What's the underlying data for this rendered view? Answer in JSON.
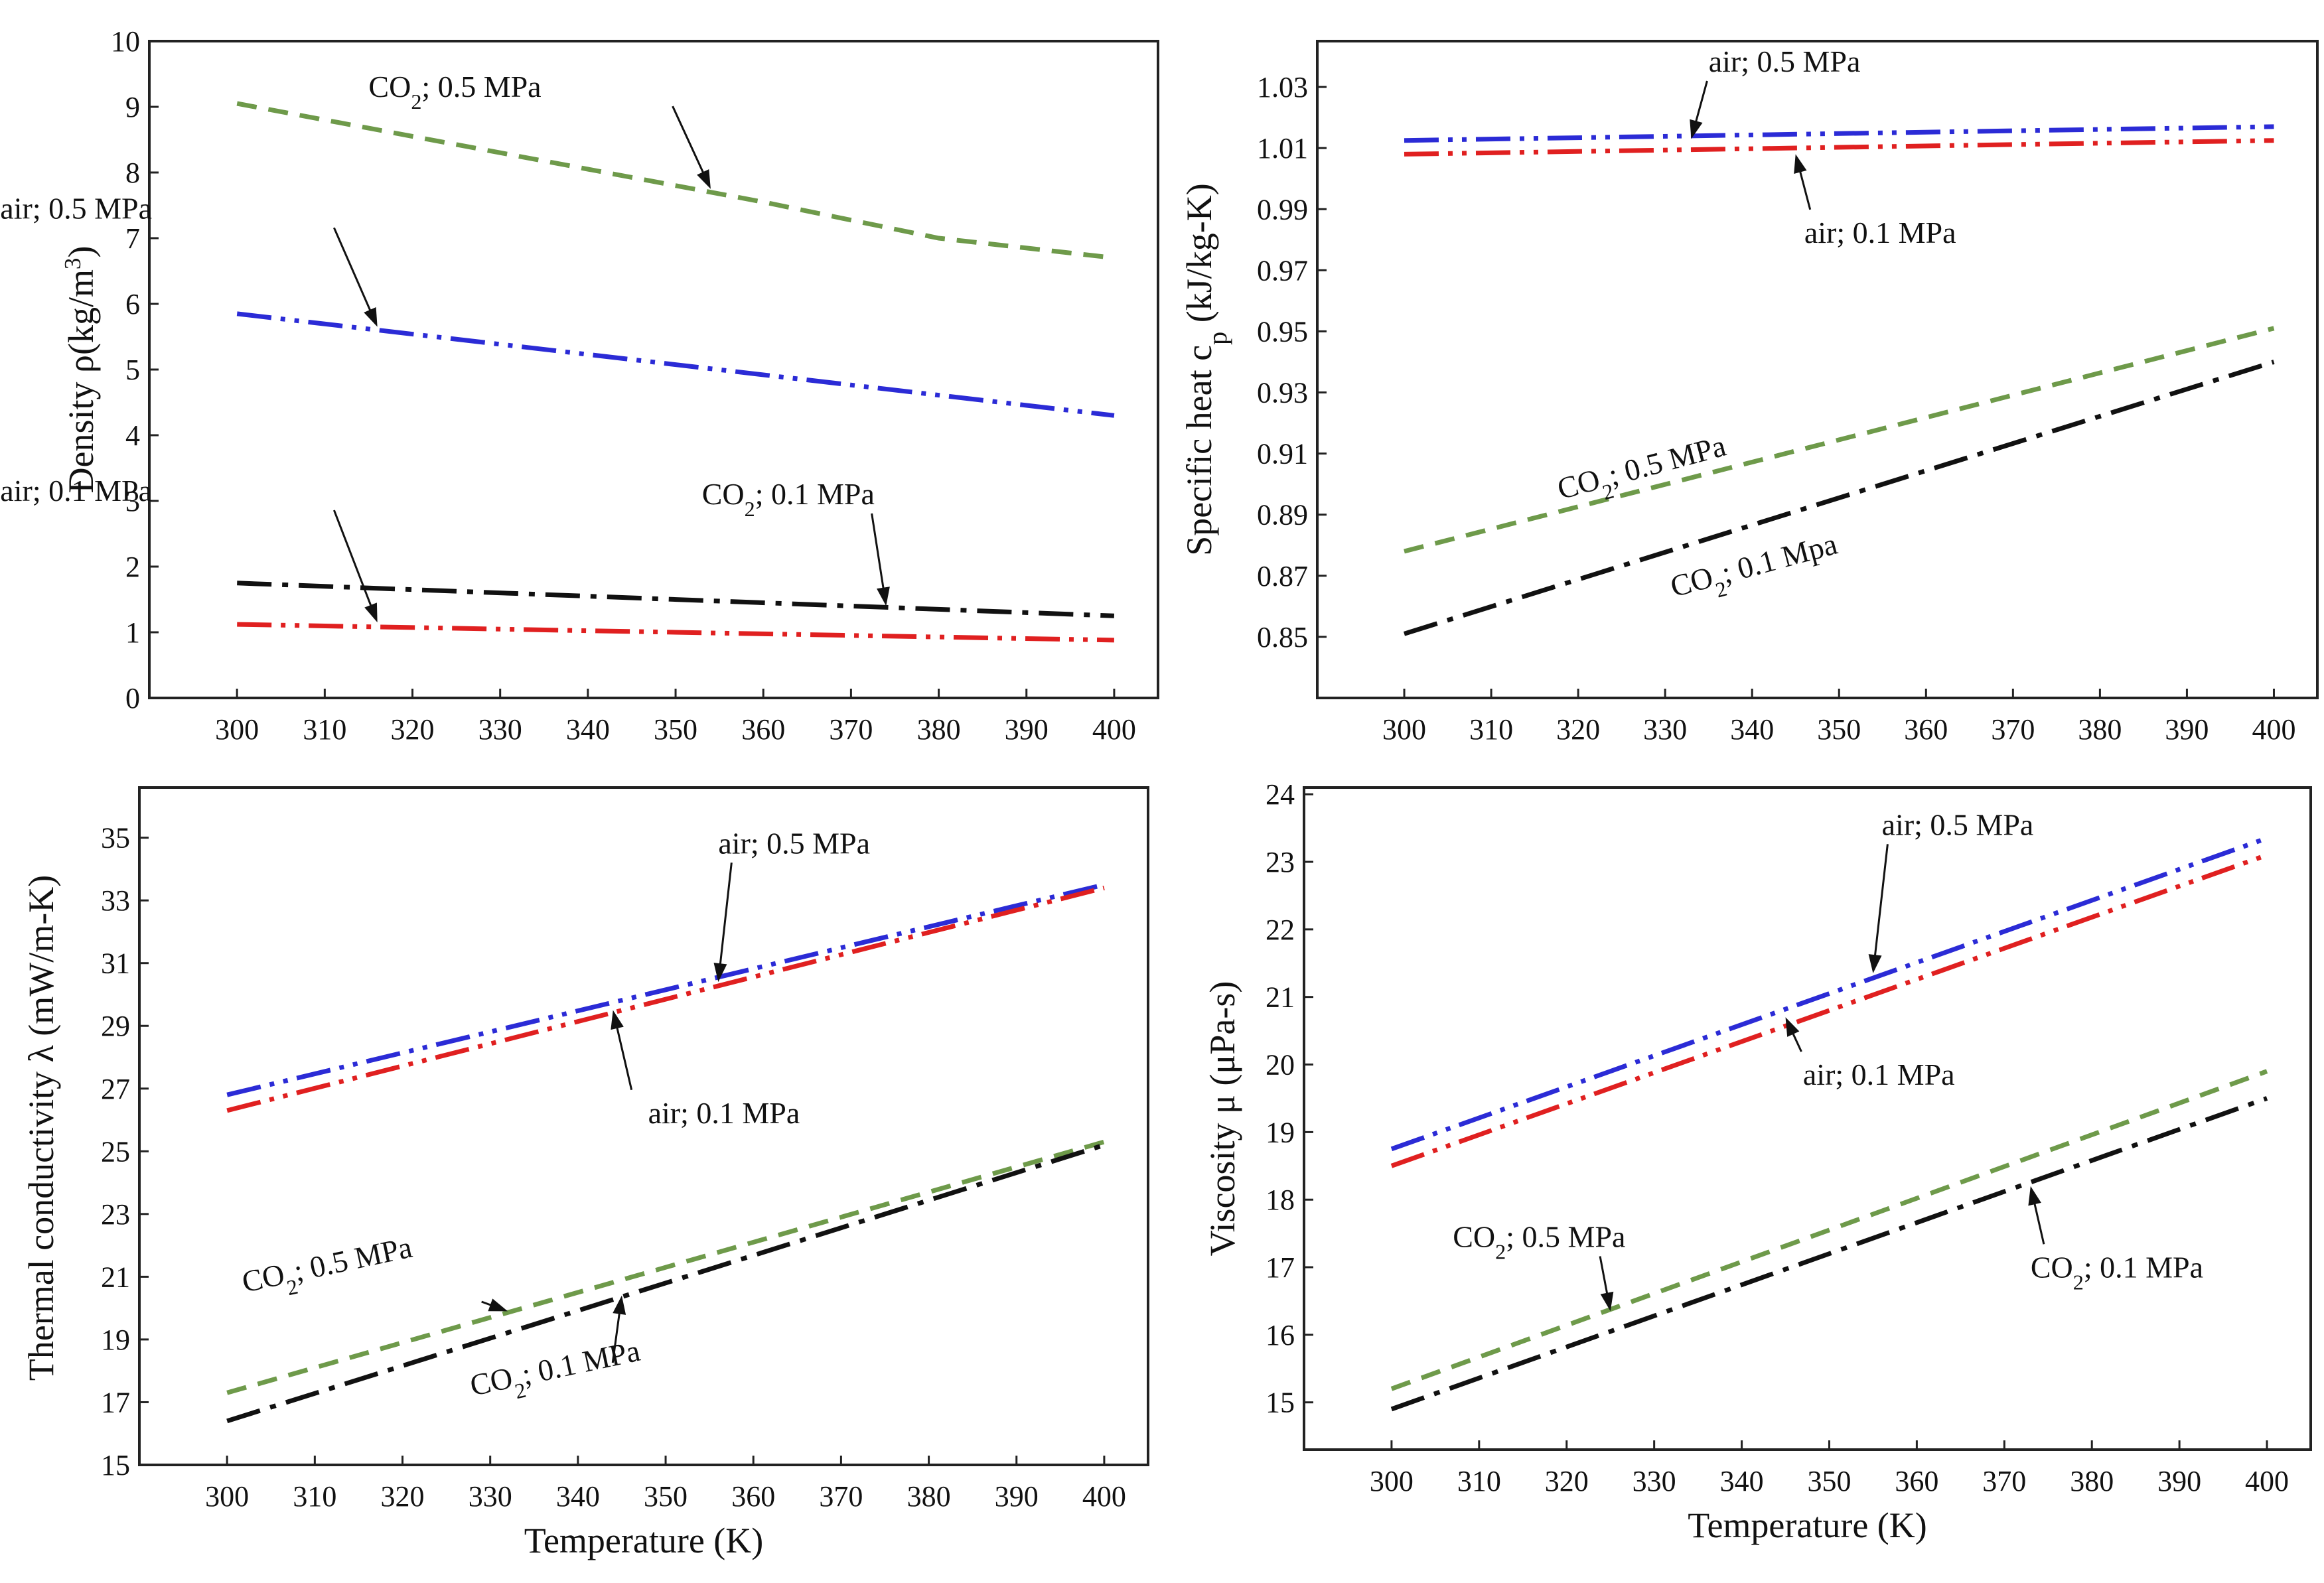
{
  "figure": {
    "panels_count": 4
  },
  "styles": {
    "air_0_5_MPa": {
      "color": "#2b2bd6",
      "dash": "dashdotdot"
    },
    "air_0_1_MPa": {
      "color": "#e02020",
      "dash": "dashdotdot"
    },
    "CO2_0_5_MPa": {
      "color": "#6e9a4a",
      "dash": "dashed"
    },
    "CO2_0_1_MPa": {
      "color": "#111111",
      "dash": "dashdot"
    }
  },
  "chart_data": [
    {
      "type": "line",
      "title": "",
      "xlabel": "",
      "ylabel": "Density ρ(kg/m³)",
      "xlim": [
        290,
        405
      ],
      "ylim": [
        0,
        10
      ],
      "xticks": [
        "300",
        "310",
        "320",
        "330",
        "340",
        "350",
        "360",
        "370",
        "380",
        "390",
        "400"
      ],
      "yticks": [
        "0",
        "1",
        "2",
        "3",
        "4",
        "5",
        "6",
        "7",
        "8",
        "9",
        "10"
      ],
      "x": [
        300,
        400
      ],
      "series": [
        {
          "name": "CO₂; 0.5 MPa",
          "style": "CO2_0_5_MPa",
          "x": [
            300,
            320,
            340,
            360,
            380,
            400
          ],
          "values": [
            9.05,
            8.55,
            8.05,
            7.55,
            7.0,
            6.7
          ]
        },
        {
          "name": "air; 0.5 MPa",
          "style": "air_0_5_MPa",
          "x": [
            300,
            400
          ],
          "values": [
            5.85,
            4.3
          ]
        },
        {
          "name": "CO₂; 0.1 MPa",
          "style": "CO2_0_1_MPa",
          "x": [
            300,
            400
          ],
          "values": [
            1.75,
            1.25
          ]
        },
        {
          "name": "air; 0.1 MPa",
          "style": "air_0_1_MPa",
          "x": [
            300,
            400
          ],
          "values": [
            1.12,
            0.88
          ]
        }
      ],
      "annotations": [
        {
          "label": "CO₂; 0.5 MPa",
          "text_at": [
            315,
            9.15
          ],
          "point_to": [
            354,
            7.75
          ]
        },
        {
          "label": "air; 0.5 MPa",
          "text_at": [
            273,
            7.3
          ],
          "point_to": [
            316,
            5.65
          ]
        },
        {
          "label": "air;  0.1 MPa",
          "text_at": [
            273,
            3.0
          ],
          "point_to": [
            316,
            1.15
          ]
        },
        {
          "label": "CO₂; 0.1 MPa",
          "text_at": [
            353,
            2.95
          ],
          "point_to": [
            374,
            1.4
          ]
        }
      ]
    },
    {
      "type": "line",
      "title": "",
      "xlabel": "",
      "ylabel": "Specific heat cₚ (kJ/kg-K)",
      "xlim": [
        290,
        405
      ],
      "ylim": [
        0.83,
        1.045
      ],
      "xticks": [
        "300",
        "310",
        "320",
        "330",
        "340",
        "350",
        "360",
        "370",
        "380",
        "390",
        "400"
      ],
      "yticks": [
        "0.85",
        "0.87",
        "0.89",
        "0.91",
        "0.93",
        "0.95",
        "0.97",
        "0.99",
        "1.01",
        "1.03"
      ],
      "series": [
        {
          "name": "air; 0.5 MPa",
          "style": "air_0_5_MPa",
          "x": [
            300,
            400
          ],
          "values": [
            1.0125,
            1.017
          ]
        },
        {
          "name": "air; 0.1 MPa",
          "style": "air_0_1_MPa",
          "x": [
            300,
            400
          ],
          "values": [
            1.008,
            1.0125
          ]
        },
        {
          "name": "CO₂; 0.5 MPa",
          "style": "CO2_0_5_MPa",
          "x": [
            300,
            400
          ],
          "values": [
            0.878,
            0.951
          ]
        },
        {
          "name": "CO₂; 0.1 MPa",
          "style": "CO2_0_1_MPa",
          "x": [
            300,
            400
          ],
          "values": [
            0.851,
            0.94
          ]
        }
      ],
      "annotations": [
        {
          "label": "air; 0.5 MPa",
          "text_at": [
            335,
            1.035
          ],
          "point_to": [
            333,
            1.013
          ]
        },
        {
          "label": "air;  0.1 MPa",
          "text_at": [
            346,
            0.979
          ],
          "point_to": [
            345,
            1.008
          ]
        },
        {
          "label": "CO₂; 0.5 MPa",
          "text_at": [
            318,
            0.895
          ],
          "rotate": -15
        },
        {
          "label": "CO₂; 0.1 Mpa",
          "text_at": [
            331,
            0.863
          ],
          "rotate": -15
        }
      ]
    },
    {
      "type": "line",
      "title": "",
      "xlabel": "Temperature (K)",
      "ylabel": "Thermal conductivity λ (mW/m-K)",
      "xlim": [
        290,
        405
      ],
      "ylim": [
        15,
        36.6
      ],
      "xticks": [
        "300",
        "310",
        "320",
        "330",
        "340",
        "350",
        "360",
        "370",
        "380",
        "390",
        "400"
      ],
      "yticks": [
        "15",
        "17",
        "19",
        "21",
        "23",
        "25",
        "27",
        "29",
        "31",
        "33",
        "35"
      ],
      "series": [
        {
          "name": "air; 0.5 MPa",
          "style": "air_0_5_MPa",
          "x": [
            300,
            400
          ],
          "values": [
            26.8,
            33.5
          ]
        },
        {
          "name": "air; 0.1 MPa",
          "style": "air_0_1_MPa",
          "x": [
            300,
            400
          ],
          "values": [
            26.3,
            33.4
          ]
        },
        {
          "name": "CO₂; 0.5 MPa",
          "style": "CO2_0_5_MPa",
          "x": [
            300,
            400
          ],
          "values": [
            17.3,
            25.3
          ]
        },
        {
          "name": "CO₂; 0.1 MPa",
          "style": "CO2_0_1_MPa",
          "x": [
            300,
            400
          ],
          "values": [
            16.4,
            25.2
          ]
        }
      ],
      "annotations": [
        {
          "label": "air; 0.5 MPa",
          "text_at": [
            356,
            34.5
          ],
          "point_to": [
            356,
            30.4
          ]
        },
        {
          "label": "air;  0.1 MPa",
          "text_at": [
            348,
            25.9
          ],
          "point_to": [
            344,
            29.5
          ]
        },
        {
          "label": "CO₂; 0.5 MPa",
          "text_at": [
            302,
            20.5
          ],
          "rotate": -12,
          "point_to": [
            332,
            19.9
          ]
        },
        {
          "label": "CO₂; 0.1 MPa",
          "text_at": [
            328,
            17.2
          ],
          "rotate": -12,
          "point_to": [
            345,
            20.4
          ]
        }
      ]
    },
    {
      "type": "line",
      "title": "",
      "xlabel": "Temperature (K)",
      "ylabel": "Viscosity μ (μPa-s)",
      "xlim": [
        290,
        405
      ],
      "ylim": [
        14.3,
        24.1
      ],
      "xticks": [
        "300",
        "310",
        "320",
        "330",
        "340",
        "350",
        "360",
        "370",
        "380",
        "390",
        "400"
      ],
      "yticks": [
        "15",
        "16",
        "17",
        "18",
        "19",
        "20",
        "21",
        "22",
        "23",
        "24"
      ],
      "series": [
        {
          "name": "air; 0.5 MPa",
          "style": "air_0_5_MPa",
          "x": [
            300,
            400
          ],
          "values": [
            18.75,
            23.35
          ]
        },
        {
          "name": "air; 0.1 MPa",
          "style": "air_0_1_MPa",
          "x": [
            300,
            400
          ],
          "values": [
            18.5,
            23.1
          ]
        },
        {
          "name": "CO₂; 0.5 MPa",
          "style": "CO2_0_5_MPa",
          "x": [
            300,
            400
          ],
          "values": [
            15.2,
            19.9
          ]
        },
        {
          "name": "CO₂; 0.1 MPa",
          "style": "CO2_0_1_MPa",
          "x": [
            300,
            400
          ],
          "values": [
            14.9,
            19.5
          ]
        }
      ],
      "annotations": [
        {
          "label": "air; 0.5 MPa",
          "text_at": [
            356,
            23.4
          ],
          "point_to": [
            355,
            21.35
          ]
        },
        {
          "label": "air;  0.1 MPa",
          "text_at": [
            347,
            19.7
          ],
          "point_to": [
            345,
            20.7
          ]
        },
        {
          "label": "CO₂; 0.5 MPa",
          "text_at": [
            307,
            17.3
          ],
          "point_to": [
            325,
            16.35
          ]
        },
        {
          "label": "CO₂; 0.1 MPa",
          "text_at": [
            373,
            16.85
          ],
          "point_to": [
            373,
            18.2
          ]
        }
      ]
    }
  ]
}
